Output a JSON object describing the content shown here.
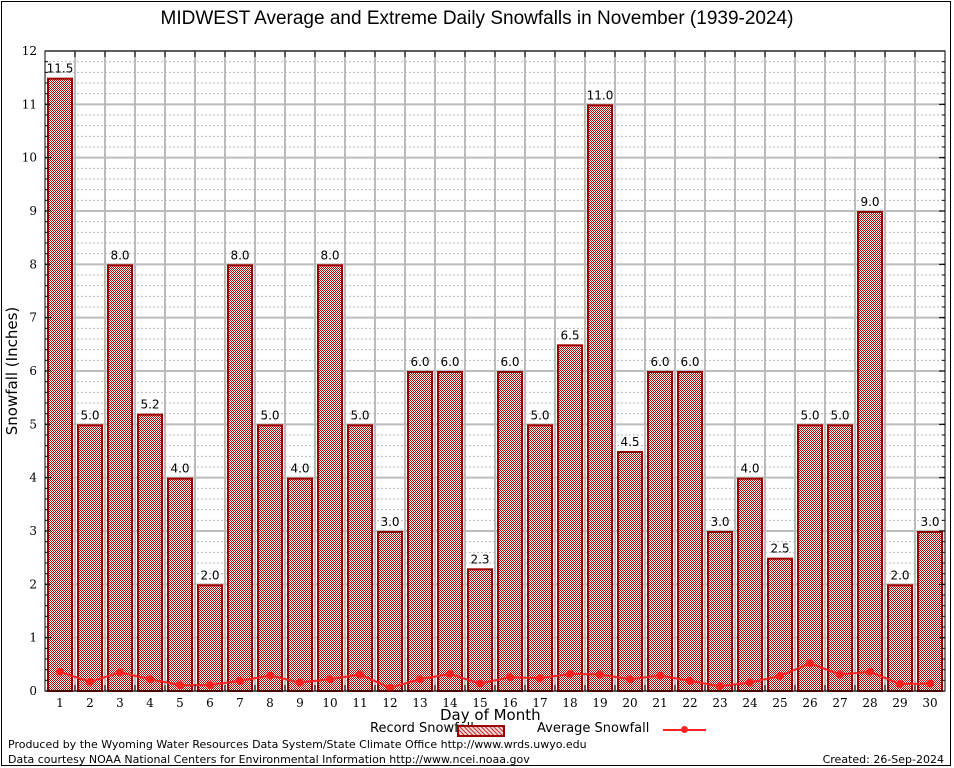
{
  "chart_data": {
    "type": "bar",
    "title": "MIDWEST Average and Extreme Daily Snowfalls in November (1939-2024)",
    "xlabel": "Day of Month",
    "ylabel": "Snowfall (Inches)",
    "ylim": [
      0,
      12
    ],
    "yticks": [
      0,
      1,
      2,
      3,
      4,
      5,
      6,
      7,
      8,
      9,
      10,
      11,
      12
    ],
    "grid": true,
    "categories": [
      "1",
      "2",
      "3",
      "4",
      "5",
      "6",
      "7",
      "8",
      "9",
      "10",
      "11",
      "12",
      "13",
      "14",
      "15",
      "16",
      "17",
      "18",
      "19",
      "20",
      "21",
      "22",
      "23",
      "24",
      "25",
      "26",
      "27",
      "28",
      "29",
      "30"
    ],
    "series": [
      {
        "name": "Record Snowfall",
        "type": "bar",
        "color": "#990000",
        "values": [
          11.5,
          5.0,
          8.0,
          5.2,
          4.0,
          2.0,
          8.0,
          5.0,
          4.0,
          8.0,
          5.0,
          3.0,
          6.0,
          6.0,
          2.3,
          6.0,
          5.0,
          6.5,
          11.0,
          4.5,
          6.0,
          6.0,
          3.0,
          4.0,
          2.5,
          5.0,
          5.0,
          9.0,
          2.0,
          3.0
        ],
        "labels": [
          "11.5",
          "5.0",
          "8.0",
          "5.2",
          "4.0",
          "2.0",
          "8.0",
          "5.0",
          "4.0",
          "8.0",
          "5.0",
          "3.0",
          "6.0",
          "6.0",
          "2.3",
          "6.0",
          "5.0",
          "6.5",
          "11.0",
          "4.5",
          "6.0",
          "6.0",
          "3.0",
          "4.0",
          "2.5",
          "5.0",
          "5.0",
          "9.0",
          "2.0",
          "3.0"
        ]
      },
      {
        "name": "Average Snowfall",
        "type": "line",
        "color": "#ff2020",
        "values": [
          0.36,
          0.17,
          0.35,
          0.22,
          0.11,
          0.11,
          0.19,
          0.29,
          0.16,
          0.22,
          0.31,
          0.06,
          0.22,
          0.32,
          0.14,
          0.26,
          0.24,
          0.32,
          0.31,
          0.22,
          0.29,
          0.19,
          0.09,
          0.16,
          0.28,
          0.52,
          0.31,
          0.36,
          0.13,
          0.14
        ]
      }
    ],
    "legend": "bottom-center"
  },
  "footer": {
    "line1": "Produced by the Wyoming Water Resources Data System/State Climate Office http://www.wrds.uwyo.edu",
    "line2": "Data courtesy NOAA National Centers for Environmental Information http://www.ncei.noaa.gov",
    "created": "Created:  26-Sep-2024"
  }
}
